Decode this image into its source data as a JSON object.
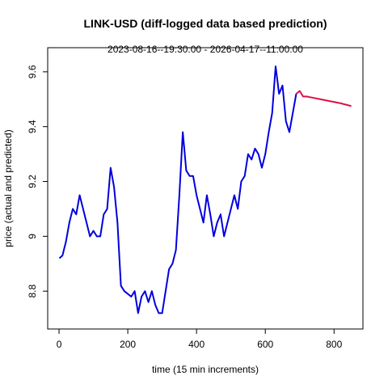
{
  "chart_data": {
    "type": "line",
    "title": "LINK-USD (diff-logged data based prediction)",
    "subtitle": "2023-08-16--19:30:00  -  2026-04-17--11:00:00",
    "x_label": "time (15 min increments)",
    "y_label": "price (actual and predicted)",
    "xlim": [
      -33,
      884
    ],
    "xticks": [
      0,
      200,
      400,
      600,
      800
    ],
    "ylim": [
      8.662,
      9.688
    ],
    "yticks": [
      8.8,
      9.0,
      9.2,
      9.4,
      9.6
    ],
    "series": [
      {
        "color": "#0000dd",
        "x": [
          1,
          10,
          20,
          30,
          40,
          50,
          60,
          70,
          80,
          90,
          100,
          110,
          120,
          130,
          140,
          150,
          160,
          170,
          180,
          190,
          200,
          210,
          220,
          230,
          240,
          250,
          260,
          270,
          280,
          290,
          300,
          310,
          320,
          330,
          340,
          350,
          360,
          370,
          380,
          390,
          400,
          410,
          420,
          430,
          440,
          450,
          460,
          470,
          480,
          490,
          500,
          510,
          520,
          530,
          540,
          550,
          560,
          570,
          580,
          590,
          600,
          610,
          620,
          630,
          640,
          650,
          660,
          670,
          680,
          690
        ],
        "values": [
          8.92,
          8.93,
          8.98,
          9.05,
          9.1,
          9.08,
          9.15,
          9.1,
          9.05,
          9.0,
          9.02,
          9.0,
          9.0,
          9.08,
          9.1,
          9.25,
          9.18,
          9.05,
          8.82,
          8.8,
          8.79,
          8.78,
          8.8,
          8.72,
          8.78,
          8.8,
          8.76,
          8.8,
          8.75,
          8.72,
          8.72,
          8.8,
          8.88,
          8.9,
          8.95,
          9.15,
          9.38,
          9.24,
          9.22,
          9.22,
          9.15,
          9.1,
          9.05,
          9.15,
          9.08,
          9.0,
          9.05,
          9.08,
          9.0,
          9.05,
          9.1,
          9.15,
          9.1,
          9.2,
          9.22,
          9.3,
          9.28,
          9.32,
          9.3,
          9.25,
          9.3,
          9.38,
          9.45,
          9.62,
          9.52,
          9.55,
          9.42,
          9.38,
          9.45,
          9.52
        ]
      },
      {
        "color": "#dd1144",
        "x": [
          690,
          700,
          710,
          720,
          740,
          760,
          780,
          800,
          820,
          850
        ],
        "values": [
          9.52,
          9.53,
          9.51,
          9.51,
          9.505,
          9.5,
          9.495,
          9.49,
          9.485,
          9.475
        ]
      }
    ]
  }
}
